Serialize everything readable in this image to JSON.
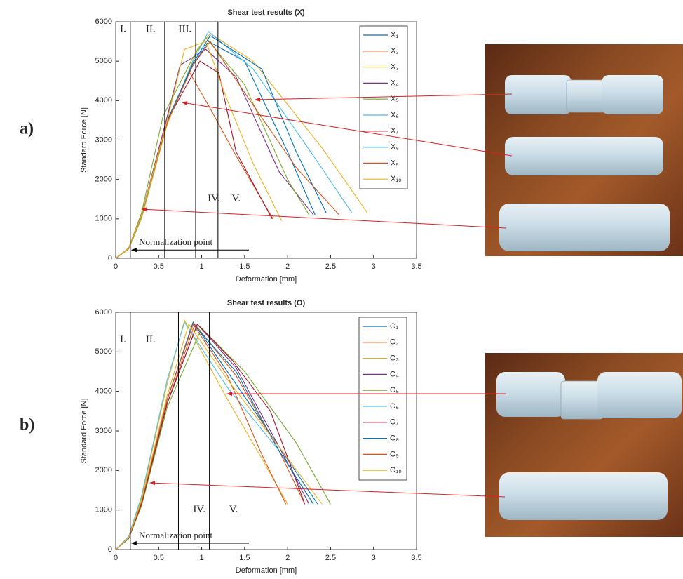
{
  "chart_data": [
    {
      "type": "line",
      "title": "Shear test results (X)",
      "panel_label": "a)",
      "xlabel": "Deformation [mm]",
      "ylabel": "Standard Force [N]",
      "xlim": [
        0,
        3.5
      ],
      "ylim": [
        0,
        6000
      ],
      "xticks": [
        0,
        0.5,
        1,
        1.5,
        2,
        2.5,
        3,
        3.5
      ],
      "yticks": [
        0,
        1000,
        2000,
        3000,
        4000,
        5000,
        6000
      ],
      "vlines": [
        0.17,
        0.57,
        0.93,
        1.19
      ],
      "region_labels": [
        "I.",
        "II.",
        "III.",
        "IV.",
        "V."
      ],
      "note": "Normalization point",
      "series": [
        {
          "name": "X₁",
          "color": "#0072BD",
          "x": [
            0,
            0.15,
            0.3,
            0.6,
            0.9,
            1.08,
            1.5,
            2.0,
            2.32
          ],
          "values": [
            0,
            250,
            1100,
            3500,
            4900,
            5500,
            5000,
            2700,
            1100
          ]
        },
        {
          "name": "X₂",
          "color": "#D95319",
          "x": [
            0,
            0.15,
            0.3,
            0.6,
            0.85,
            1.1,
            1.4,
            1.83
          ],
          "values": [
            0,
            250,
            1050,
            3400,
            4750,
            3800,
            2600,
            1000
          ]
        },
        {
          "name": "X₃",
          "color": "#EDB120",
          "x": [
            0,
            0.15,
            0.3,
            0.6,
            0.95,
            1.1,
            1.6,
            2.4,
            2.93
          ],
          "values": [
            0,
            230,
            1000,
            3400,
            5300,
            5700,
            5000,
            2800,
            1150
          ]
        },
        {
          "name": "X₄",
          "color": "#7E2F8E",
          "x": [
            0,
            0.15,
            0.3,
            0.6,
            0.75,
            1.05,
            1.4,
            1.9,
            2.3
          ],
          "values": [
            0,
            250,
            1100,
            3600,
            4900,
            5300,
            4600,
            2200,
            1100
          ]
        },
        {
          "name": "X₅",
          "color": "#77AC30",
          "x": [
            0,
            0.15,
            0.3,
            0.55,
            0.9,
            1.05,
            1.5,
            2.0,
            2.25
          ],
          "values": [
            0,
            260,
            1150,
            3600,
            5100,
            5600,
            4400,
            2000,
            1100
          ]
        },
        {
          "name": "X₆",
          "color": "#4DBEEE",
          "x": [
            0,
            0.15,
            0.3,
            0.6,
            0.9,
            1.08,
            1.6,
            2.3,
            2.75
          ],
          "values": [
            0,
            240,
            1050,
            3450,
            5000,
            5750,
            4800,
            2600,
            1150
          ]
        },
        {
          "name": "X₇",
          "color": "#A2142F",
          "x": [
            0,
            0.15,
            0.3,
            0.6,
            0.98,
            1.2,
            1.4,
            1.82
          ],
          "values": [
            0,
            250,
            1100,
            3500,
            5000,
            4700,
            2700,
            1000
          ]
        },
        {
          "name": "X₈",
          "color": "#0072BD",
          "x": [
            0,
            0.15,
            0.3,
            0.6,
            0.9,
            1.1,
            1.7,
            2.1,
            2.45
          ],
          "values": [
            0,
            250,
            1100,
            3500,
            4950,
            5650,
            4800,
            2700,
            1150
          ]
        },
        {
          "name": "X₉",
          "color": "#D95319",
          "x": [
            0,
            0.15,
            0.3,
            0.6,
            0.9,
            1.1,
            1.5,
            2.1,
            2.6
          ],
          "values": [
            0,
            240,
            1080,
            3450,
            4900,
            5500,
            4200,
            2300,
            1100
          ]
        },
        {
          "name": "X₁₀",
          "color": "#EDB120",
          "x": [
            0,
            0.15,
            0.3,
            0.6,
            0.8,
            1.05,
            1.3,
            1.6,
            1.93
          ],
          "values": [
            0,
            250,
            1100,
            3500,
            5300,
            5500,
            4000,
            2400,
            950
          ]
        }
      ]
    },
    {
      "type": "line",
      "title": "Shear test results (O)",
      "panel_label": "b)",
      "xlabel": "Deformation [mm]",
      "ylabel": "Standard Force [N]",
      "xlim": [
        0,
        3.5
      ],
      "ylim": [
        0,
        6000
      ],
      "xticks": [
        0,
        0.5,
        1,
        1.5,
        2,
        2.5,
        3,
        3.5
      ],
      "yticks": [
        0,
        1000,
        2000,
        3000,
        4000,
        5000,
        6000
      ],
      "vlines": [
        0.17,
        0.73,
        1.09
      ],
      "region_labels": [
        "I.",
        "II.",
        "IV.",
        "V."
      ],
      "note": "Normalization point",
      "series": [
        {
          "name": "O₁",
          "color": "#0072BD",
          "x": [
            0,
            0.15,
            0.3,
            0.6,
            0.9,
            1.3,
            1.9,
            2.35
          ],
          "values": [
            0,
            300,
            1200,
            3800,
            5750,
            4500,
            2600,
            1150
          ]
        },
        {
          "name": "O₂",
          "color": "#D95319",
          "x": [
            0,
            0.15,
            0.3,
            0.6,
            0.92,
            1.4,
            1.9,
            2.2
          ],
          "values": [
            0,
            280,
            1150,
            3700,
            5700,
            4400,
            2500,
            1150
          ]
        },
        {
          "name": "O₃",
          "color": "#EDB120",
          "x": [
            0,
            0.15,
            0.3,
            0.6,
            0.8,
            1.3,
            1.7,
            2.0
          ],
          "values": [
            0,
            320,
            1300,
            4200,
            5800,
            3800,
            2300,
            1150
          ]
        },
        {
          "name": "O₄",
          "color": "#7E2F8E",
          "x": [
            0,
            0.15,
            0.3,
            0.6,
            0.95,
            1.4,
            1.9,
            2.25
          ],
          "values": [
            0,
            280,
            1150,
            3700,
            5700,
            4600,
            2600,
            1150
          ]
        },
        {
          "name": "O₅",
          "color": "#77AC30",
          "x": [
            0,
            0.15,
            0.3,
            0.6,
            1.0,
            1.5,
            2.1,
            2.5
          ],
          "values": [
            0,
            270,
            1100,
            3600,
            5600,
            4500,
            2700,
            1150
          ]
        },
        {
          "name": "O₆",
          "color": "#4DBEEE",
          "x": [
            0,
            0.15,
            0.3,
            0.6,
            0.8,
            1.3,
            1.9,
            2.3
          ],
          "values": [
            0,
            330,
            1350,
            4300,
            5750,
            4100,
            2500,
            1150
          ]
        },
        {
          "name": "O₇",
          "color": "#A2142F",
          "x": [
            0,
            0.15,
            0.3,
            0.6,
            0.95,
            1.35,
            1.8,
            2.2
          ],
          "values": [
            0,
            280,
            1150,
            3700,
            5700,
            4800,
            3500,
            1150
          ]
        },
        {
          "name": "O₈",
          "color": "#0072BD",
          "x": [
            0,
            0.15,
            0.3,
            0.6,
            0.9,
            1.4,
            1.9,
            2.3
          ],
          "values": [
            0,
            290,
            1200,
            3800,
            5700,
            4500,
            2500,
            1150
          ]
        },
        {
          "name": "O₉",
          "color": "#D95319",
          "x": [
            0,
            0.15,
            0.3,
            0.6,
            0.9,
            1.3,
            1.7,
            1.98
          ],
          "values": [
            0,
            290,
            1200,
            3800,
            5700,
            4400,
            2400,
            1150
          ]
        },
        {
          "name": "O₁₀",
          "color": "#EDB120",
          "x": [
            0,
            0.15,
            0.3,
            0.6,
            0.85,
            1.3,
            1.9,
            2.4
          ],
          "values": [
            0,
            300,
            1250,
            3900,
            5700,
            4300,
            2600,
            1150
          ]
        }
      ]
    }
  ]
}
